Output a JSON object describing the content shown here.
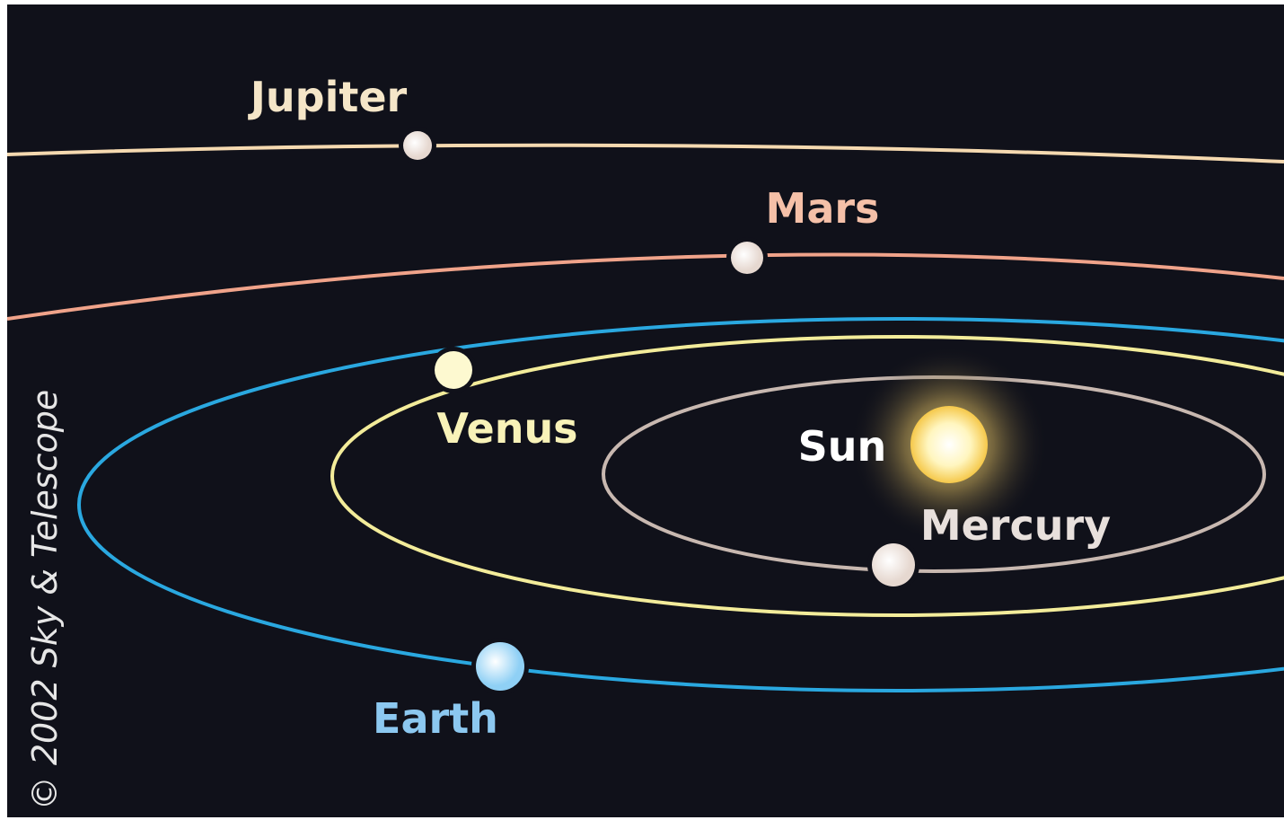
{
  "nodes": [
    {
      "label": "Jupiter"
    },
    {
      "label": "Mars"
    },
    {
      "label": "Venus"
    },
    {
      "label": "Sun"
    },
    {
      "label": "Mercury"
    },
    {
      "label": "Earth"
    }
  ],
  "credit": "© 2002 Sky & Telescope"
}
